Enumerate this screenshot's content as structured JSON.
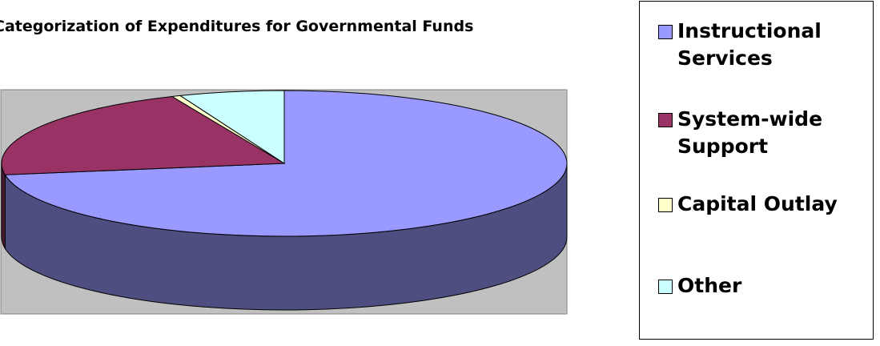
{
  "chart_data": {
    "type": "pie",
    "title": "Categorization of Expenditures for Governmental Funds",
    "categories": [
      "Instructional Services",
      "System-wide Support",
      "Capital Outlay",
      "Other"
    ],
    "values": [
      72.5,
      21.0,
      0.5,
      6.0
    ],
    "colors": [
      "#9999FF",
      "#993366",
      "#FFFFCC",
      "#CCFFFF"
    ],
    "side_colors": [
      "#4E4E80",
      "#4C1A33",
      "#808066",
      "#668080"
    ],
    "style": "3d",
    "legend_position": "right",
    "plot_background": "#C0C0C0"
  },
  "legend": {
    "items": [
      {
        "label": "Instructional Services",
        "color": "#9999FF"
      },
      {
        "label": "System-wide Support",
        "color": "#993366"
      },
      {
        "label": "Capital Outlay",
        "color": "#FFFFCC"
      },
      {
        "label": "Other",
        "color": "#CCFFFF"
      }
    ]
  }
}
